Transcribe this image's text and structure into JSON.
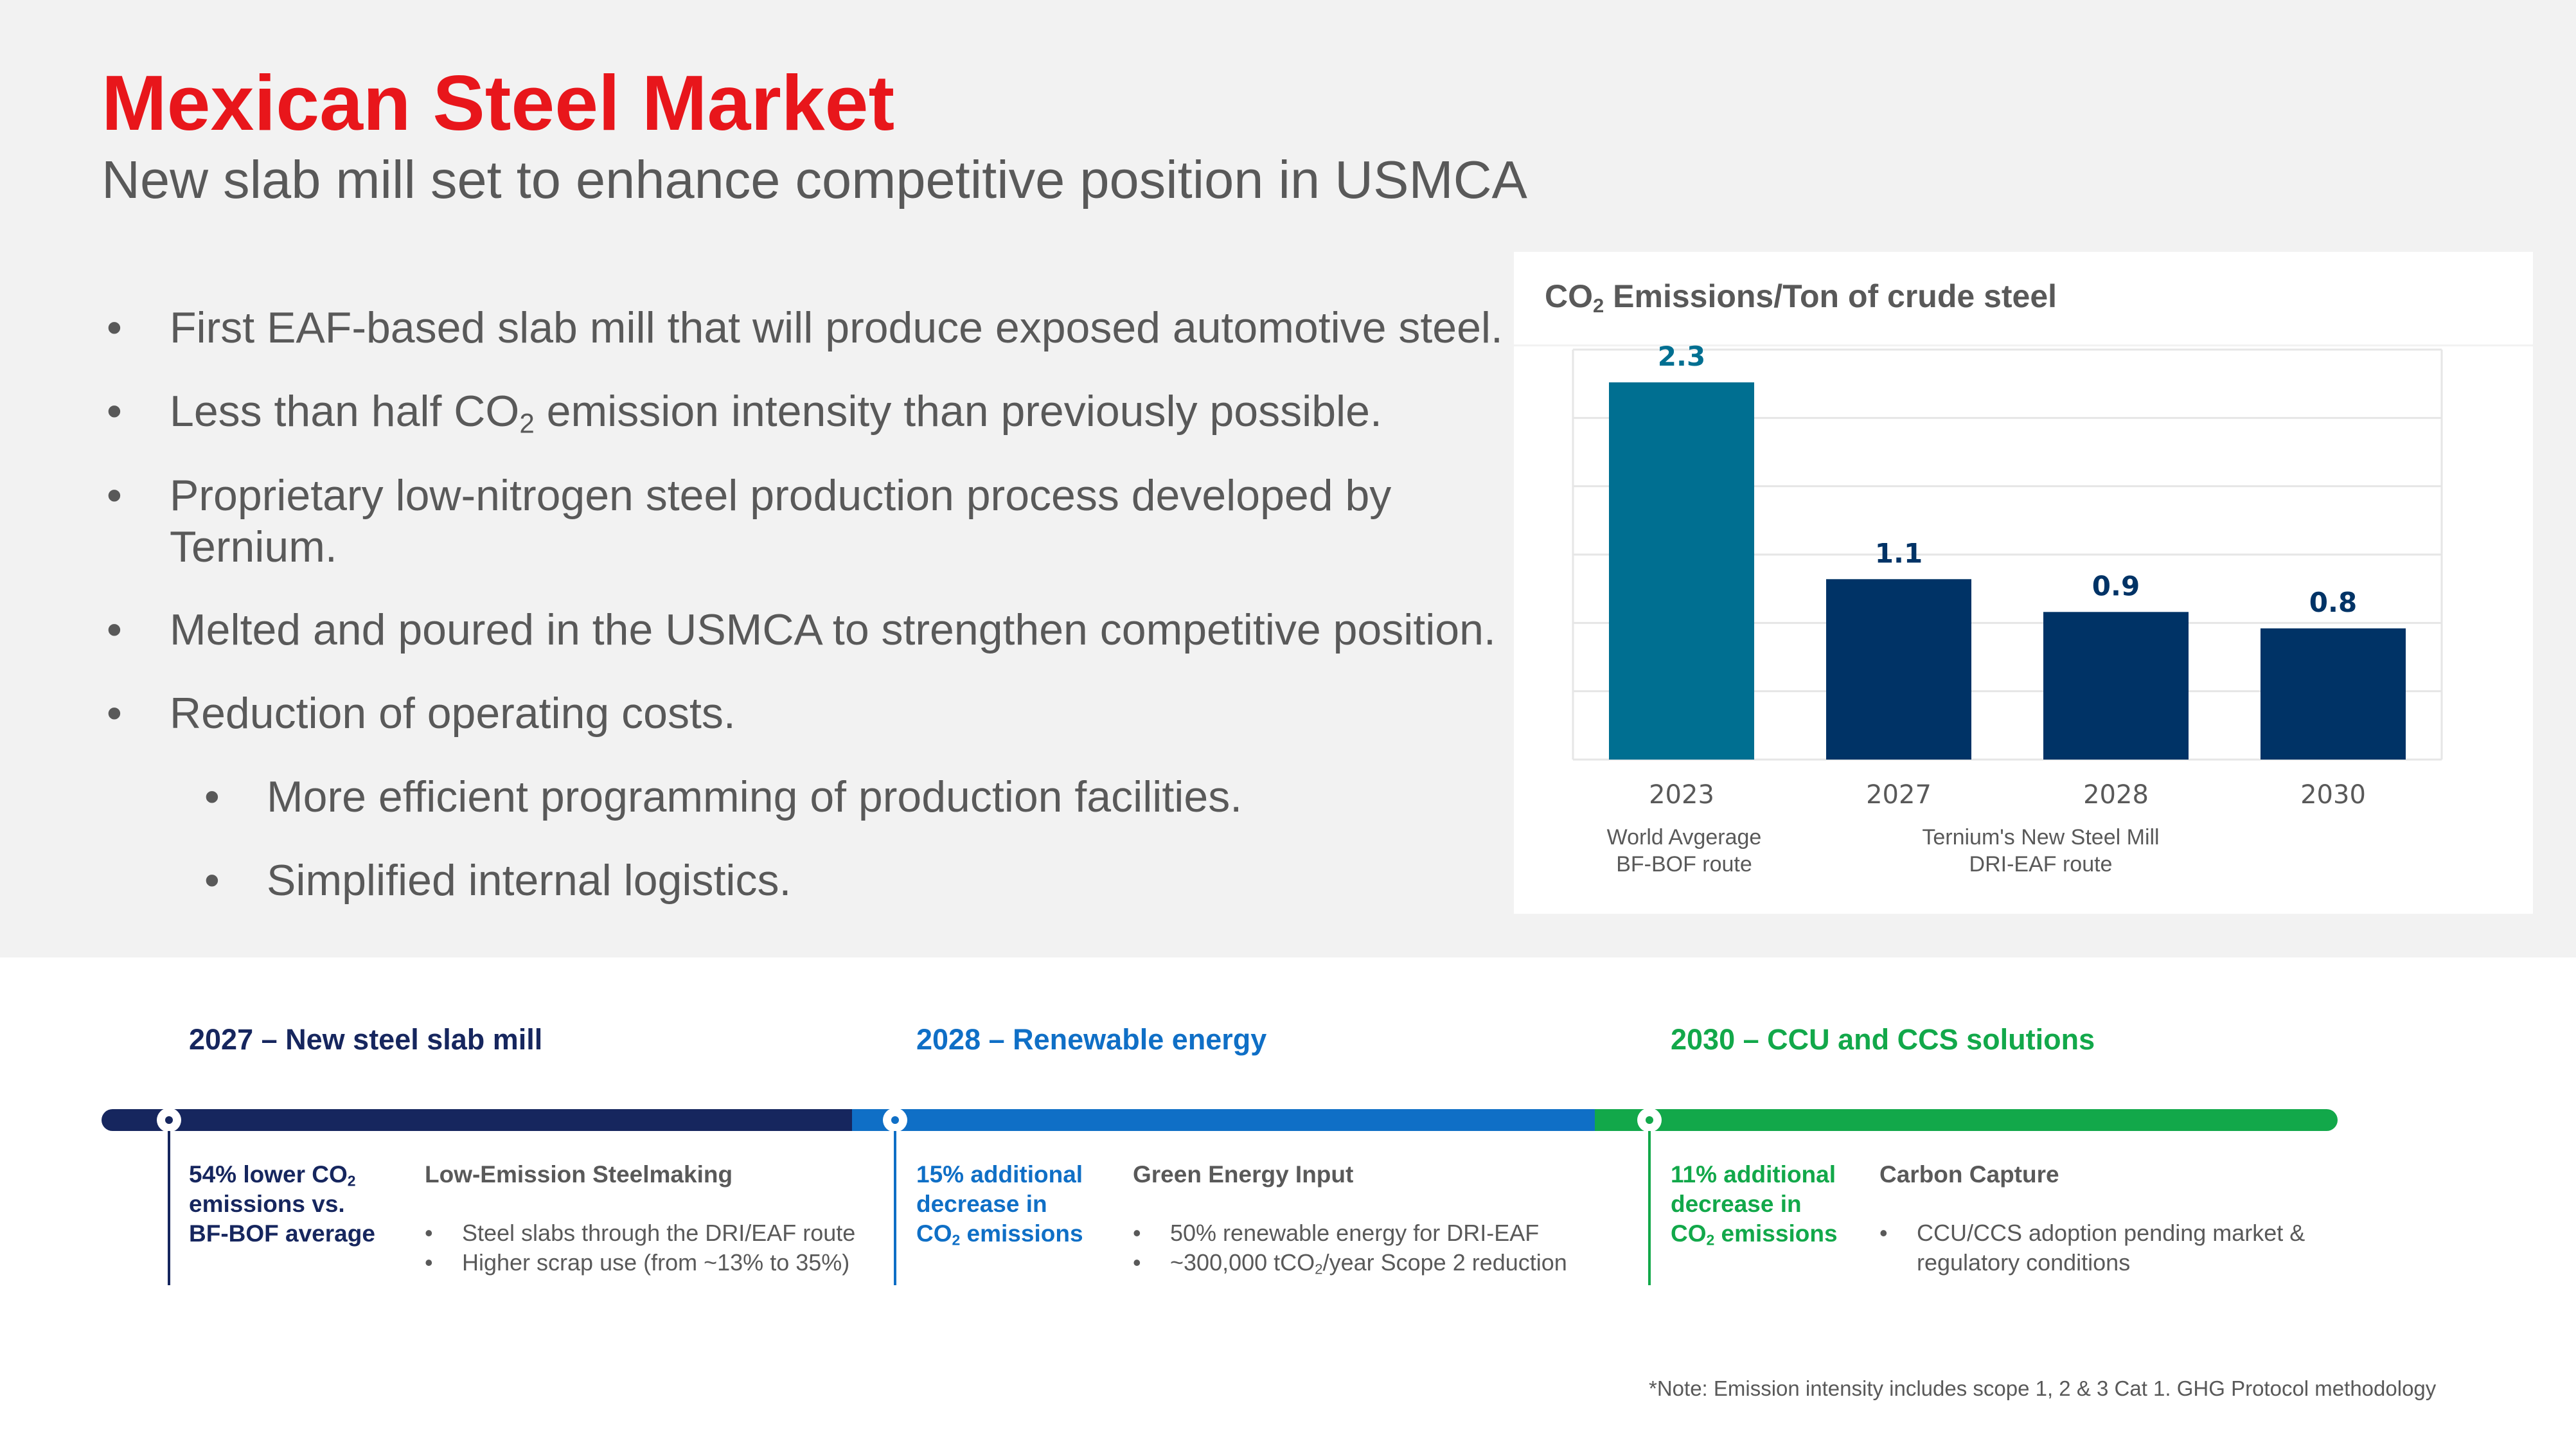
{
  "header": {
    "title": "Mexican Steel Market",
    "subtitle": "New slab mill set to enhance competitive position in USMCA"
  },
  "bullets": {
    "b1": "First EAF-based slab mill that will produce exposed automotive steel.",
    "b2_pre": "Less than half CO",
    "b2_sub": "2",
    "b2_post": " emission intensity than previously possible.",
    "b3_line1": "Proprietary low-nitrogen steel production process developed by",
    "b3_line2": "Ternium.",
    "b4": "Melted and poured in the USMCA to strengthen competitive position.",
    "b5": "Reduction of operating costs.",
    "b5_sub1": "More efficient programming of production facilities.",
    "b5_sub2": "Simplified internal logistics."
  },
  "chart": {
    "title_pre": "CO",
    "title_sub": "2",
    "title_post": " Emissions/Ton of crude steel",
    "group1_line1": "World Avgerage",
    "group1_line2": "BF-BOF route",
    "group2_line1": "Ternium's New Steel Mill",
    "group2_line2": "DRI-EAF route"
  },
  "chart_data": {
    "type": "bar",
    "title": "CO2 Emissions/Ton of crude steel",
    "categories": [
      "2023",
      "2027",
      "2028",
      "2030"
    ],
    "values": [
      2.3,
      1.1,
      0.9,
      0.8
    ],
    "labels": [
      "2.3",
      "1.1",
      "0.9",
      "0.8"
    ],
    "colors": [
      "#006f91",
      "#003366",
      "#003366",
      "#003366"
    ],
    "label_colors": [
      "#006f91",
      "#003366",
      "#003366",
      "#003366"
    ],
    "ylim": [
      0,
      2.5
    ],
    "grid": true,
    "xlabel": "",
    "ylabel": ""
  },
  "timeline": {
    "stage1": {
      "title": "2027 – New steel slab mill",
      "color": "#16265e",
      "metric_l1_pre": "54% lower CO",
      "metric_l1_sub": "2",
      "metric_l2": "emissions vs.",
      "metric_l3": "BF-BOF average",
      "block_title": "Low-Emission Steelmaking",
      "item1": "Steel slabs through the DRI/EAF route",
      "item2": "Higher scrap use (from ~13% to 35%)"
    },
    "stage2": {
      "title": "2028 – Renewable energy",
      "color": "#0f6fc6",
      "metric_l1": "15% additional",
      "metric_l2": "decrease in",
      "metric_l3_pre": "CO",
      "metric_l3_sub": "2",
      "metric_l3_post": " emissions",
      "block_title": "Green Energy Input",
      "item1": "50% renewable energy for DRI-EAF",
      "item2_pre": "~300,000 tCO",
      "item2_sub": "2",
      "item2_post": "/year Scope 2 reduction"
    },
    "stage3": {
      "title": "2030 – CCU and CCS solutions",
      "color": "#12a84a",
      "metric_l1": "11% additional",
      "metric_l2": "decrease in",
      "metric_l3_pre": "CO",
      "metric_l3_sub": "2",
      "metric_l3_post": " emissions",
      "block_title": "Carbon Capture",
      "item1_l1": "CCU/CCS adoption pending market &",
      "item1_l2": "regulatory conditions"
    }
  },
  "footnote": "*Note: Emission intensity includes scope 1, 2 & 3 Cat 1. GHG Protocol methodology"
}
